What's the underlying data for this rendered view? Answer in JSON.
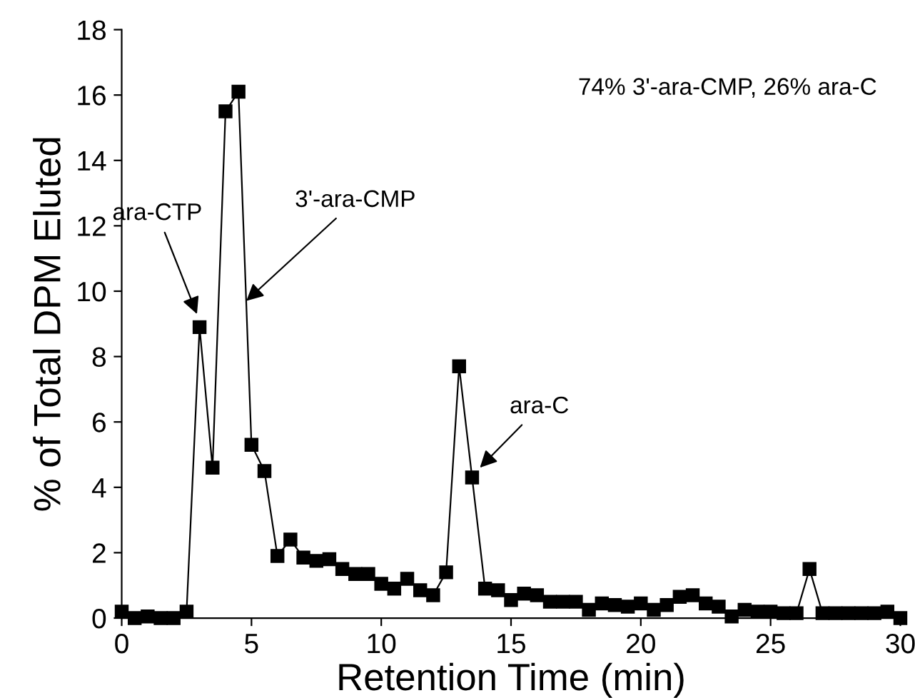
{
  "chart_data": {
    "type": "line",
    "xlabel": "Retention Time (min)",
    "ylabel": "% of Total DPM Eluted",
    "x": [
      0,
      0.5,
      1,
      1.5,
      2,
      2.5,
      3,
      3.5,
      4,
      4.5,
      5,
      5.5,
      6,
      6.5,
      7,
      7.5,
      8,
      8.5,
      9,
      9.5,
      10,
      10.5,
      11,
      11.5,
      12,
      12.5,
      13,
      13.5,
      14,
      14.5,
      15,
      15.5,
      16,
      16.5,
      17,
      17.5,
      18,
      18.5,
      19,
      19.5,
      20,
      20.5,
      21,
      21.5,
      22,
      22.5,
      23,
      23.5,
      24,
      24.5,
      25,
      25.5,
      26,
      26.5,
      27,
      27.5,
      28,
      28.5,
      29,
      29.5,
      30
    ],
    "series": [
      {
        "color": "#000000",
        "values": [
          0.2,
          0.0,
          0.05,
          0.0,
          0.0,
          0.2,
          8.9,
          4.6,
          15.5,
          16.1,
          5.3,
          4.5,
          1.9,
          2.4,
          1.85,
          1.75,
          1.8,
          1.5,
          1.35,
          1.35,
          1.05,
          0.9,
          1.2,
          0.85,
          0.7,
          1.4,
          7.7,
          4.3,
          0.9,
          0.85,
          0.55,
          0.75,
          0.7,
          0.5,
          0.5,
          0.5,
          0.25,
          0.45,
          0.4,
          0.35,
          0.45,
          0.25,
          0.4,
          0.65,
          0.7,
          0.45,
          0.35,
          0.05,
          0.25,
          0.2,
          0.2,
          0.15,
          0.15,
          1.5,
          0.15,
          0.15,
          0.15,
          0.15,
          0.15,
          0.2,
          0.0
        ]
      }
    ],
    "marker": "square",
    "line_style": "solid",
    "grid": false,
    "legend": false,
    "xlim": [
      0,
      30
    ],
    "xticks": [
      0,
      5,
      10,
      15,
      20,
      25,
      30
    ],
    "ylim": [
      0,
      18
    ],
    "yticks": [
      0,
      2,
      4,
      6,
      8,
      10,
      12,
      14,
      16,
      18
    ],
    "annotations": [
      {
        "text": "ara-CTP",
        "x": 2.9,
        "y": 9.3
      },
      {
        "text": "3'-ara-CMP",
        "x": 4.8,
        "y": 9.7
      },
      {
        "text": "ara-C",
        "x": 13.8,
        "y": 4.6
      },
      "74% 3'-ara-CMP, 26% ara-C"
    ]
  }
}
